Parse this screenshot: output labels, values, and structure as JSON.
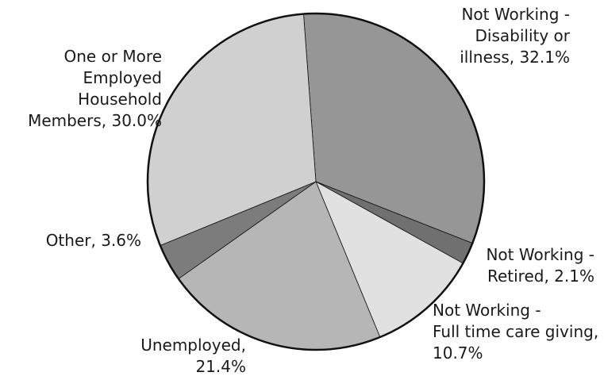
{
  "chart_data": {
    "type": "pie",
    "title": "",
    "start_angle_deg": 265.8,
    "direction": "clockwise",
    "slices": [
      {
        "label": "Not Working - Disability or illness",
        "value": 32.1,
        "color": "#969696",
        "label_lines": [
          "Not Working -",
          "Disability or",
          "illness, 32.1%"
        ],
        "label_anchor": "end"
      },
      {
        "label": "Not Working - Retired",
        "value": 2.1,
        "color": "#707070",
        "label_lines": [
          "Not Working -",
          "Retired, 2.1%"
        ],
        "label_anchor": "end"
      },
      {
        "label": "Not Working - Full time care giving",
        "value": 10.7,
        "color": "#e1e1e1",
        "label_lines": [
          "Not Working -",
          "Full time care giving,",
          "10.7%"
        ],
        "label_anchor": "start"
      },
      {
        "label": "Unemployed",
        "value": 21.4,
        "color": "#b6b6b6",
        "label_lines": [
          "Unemployed,",
          "21.4%"
        ],
        "label_anchor": "end"
      },
      {
        "label": "Other",
        "value": 3.6,
        "color": "#7c7c7c",
        "label_lines": [
          "Other, 3.6%"
        ],
        "label_anchor": "end"
      },
      {
        "label": "One or More Employed Household Members",
        "value": 30.0,
        "color": "#d0d0d0",
        "label_lines": [
          "One or More",
          "Employed",
          "Household",
          "Members, 30.0%"
        ],
        "label_anchor": "end"
      }
    ]
  }
}
